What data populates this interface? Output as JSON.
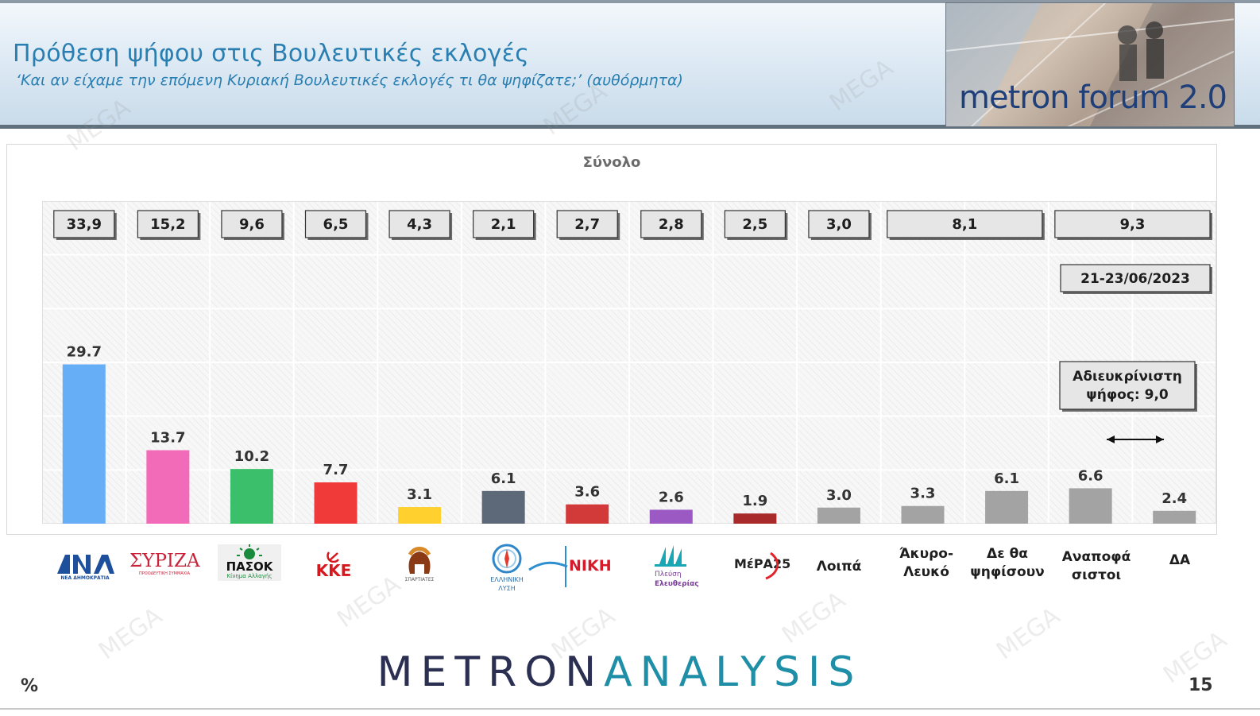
{
  "header": {
    "title": "Πρόθεση ψήφου στις Βουλευτικές εκλογές",
    "subtitle": "‘Και αν είχαμε την επόμενη Κυριακή Βουλευτικές εκλογές τι θα ψηφίζατε;’ (αυθόρμητα)",
    "badge_text": "metron forum 2.0"
  },
  "chart_data": {
    "type": "bar",
    "title": "Σύνολο",
    "categories": [
      "ΝΔ",
      "ΣΥΡΙΖΑ",
      "ΠΑΣΟΚ",
      "ΚΚΕ",
      "Σπαρτιάτες",
      "Ελληνική Λύση",
      "ΝΙΚΗ",
      "Πλεύση Ελευθερίας",
      "ΜέΡΑ25",
      "Λοιπά",
      "Άκυρο-Λευκό",
      "Δε θα ψηφίσουν",
      "Αναποφάσιστοι",
      "ΔΑ"
    ],
    "series": [
      {
        "values": [
          29.7,
          13.7,
          10.2,
          7.7,
          3.1,
          6.1,
          3.6,
          2.6,
          1.9,
          3.0,
          3.3,
          6.1,
          6.6,
          2.4
        ],
        "value_labels": [
          "29.7",
          "13.7",
          "10.2",
          "7.7",
          "3.1",
          "6.1",
          "3.6",
          "2.6",
          "1.9",
          "3.0",
          "3.3",
          "6.1",
          "6.6",
          "2.4"
        ],
        "colors": [
          "#66aef5",
          "#f26bb8",
          "#3cbf6a",
          "#f03a3a",
          "#ffd02e",
          "#5d6878",
          "#d23a3a",
          "#9b59c4",
          "#a82a2a",
          "#a3a3a3",
          "#a3a3a3",
          "#a3a3a3",
          "#a3a3a3",
          "#a3a3a3"
        ]
      }
    ],
    "previous_poll": {
      "label": "21-23/06/2023",
      "values": [
        {
          "text": "33,9",
          "span": [
            0,
            0
          ]
        },
        {
          "text": "15,2",
          "span": [
            1,
            1
          ]
        },
        {
          "text": "9,6",
          "span": [
            2,
            2
          ]
        },
        {
          "text": "6,5",
          "span": [
            3,
            3
          ]
        },
        {
          "text": "4,3",
          "span": [
            4,
            4
          ]
        },
        {
          "text": "2,1",
          "span": [
            5,
            5
          ]
        },
        {
          "text": "2,7",
          "span": [
            6,
            6
          ]
        },
        {
          "text": "2,8",
          "span": [
            7,
            7
          ]
        },
        {
          "text": "2,5",
          "span": [
            8,
            8
          ]
        },
        {
          "text": "3,0",
          "span": [
            9,
            9
          ]
        },
        {
          "text": "8,1",
          "span": [
            10,
            11
          ]
        },
        {
          "text": "9,3",
          "span": [
            12,
            13
          ]
        }
      ]
    },
    "annotation": "Αδιευκρίνιστη ψήφος: 9,0",
    "ylim": [
      0,
      36
    ],
    "grid": true,
    "xlabel": "",
    "ylabel": "%"
  },
  "category_labels": {
    "loipa": "Λοιπά",
    "akyro": "Άκυρο-Λευκό",
    "de_tha": "Δε θα ψηφίσουν",
    "anapofasistoi": "Αναποφά σιστοι",
    "da": "ΔΑ"
  },
  "logos": {
    "nd": "ΝΔ",
    "nd_sub": "ΝΕΑ ΔΗΜΟΚΡΑΤΙΑ",
    "syriza": "ΣΥΡΙΖΑ",
    "syriza_sub": "ΠΡΟΟΔΕΥΤΙΚΗ ΣΥΜΜΑΧΙΑ",
    "pasok": "ΠΑΣΟΚ",
    "pasok_sub": "Κίνημα Αλλαγής",
    "kke": "ΚΚΕ",
    "spartiates": "ΣΠΑΡΤΙΑΤΕΣ",
    "el_lysi_1": "ΕΛΛΗΝΙΚΗ",
    "el_lysi_2": "ΛΥΣΗ",
    "niki": "ΝΙΚΗ",
    "plefsi_1": "Πλεύση",
    "plefsi_2": "Ελευθερίας",
    "mera25": "ΜέΡΑ25"
  },
  "footer": {
    "brand_a": "METRON",
    "brand_b": "ANALYSIS",
    "unit": "%",
    "page": "15"
  },
  "watermark": "MEGA"
}
